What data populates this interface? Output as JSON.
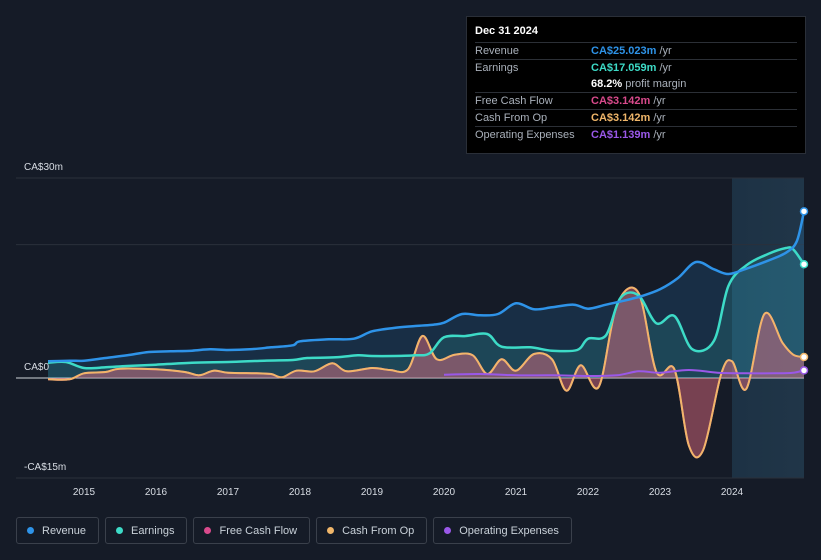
{
  "tooltip": {
    "date": "Dec 31 2024",
    "rows": [
      {
        "label": "Revenue",
        "value": "CA$25.023m",
        "unit": "/yr",
        "color": "#2e93e8"
      },
      {
        "label": "Earnings",
        "value": "CA$17.059m",
        "unit": "/yr",
        "color": "#3ddbc7"
      },
      {
        "label": "",
        "value": "68.2%",
        "unit": "profit margin",
        "color": "#ffffff"
      },
      {
        "label": "Free Cash Flow",
        "value": "CA$3.142m",
        "unit": "/yr",
        "color": "#d94a8c"
      },
      {
        "label": "Cash From Op",
        "value": "CA$3.142m",
        "unit": "/yr",
        "color": "#f0b66a"
      },
      {
        "label": "Operating Expenses",
        "value": "CA$1.139m",
        "unit": "/yr",
        "color": "#9a58e8"
      }
    ]
  },
  "legend": [
    {
      "label": "Revenue",
      "color": "#2e93e8"
    },
    {
      "label": "Earnings",
      "color": "#3ddbc7"
    },
    {
      "label": "Free Cash Flow",
      "color": "#d94a8c"
    },
    {
      "label": "Cash From Op",
      "color": "#f0b66a"
    },
    {
      "label": "Operating Expenses",
      "color": "#9a58e8"
    }
  ],
  "chart_data": {
    "type": "line",
    "title": "",
    "xlabel": "",
    "ylabel": "",
    "y_tick_labels": [
      "CA$30m",
      "CA$0",
      "-CA$15m"
    ],
    "y_ticks": [
      30,
      0,
      -15
    ],
    "ylim": [
      -15,
      30
    ],
    "xlim": [
      2014.5,
      2025.0
    ],
    "x_tick_labels": [
      "2015",
      "2016",
      "2017",
      "2018",
      "2019",
      "2020",
      "2021",
      "2022",
      "2023",
      "2024"
    ],
    "x_ticks": [
      2015,
      2016,
      2017,
      2018,
      2019,
      2020,
      2021,
      2022,
      2023,
      2024
    ],
    "forecast_start": 2024.0,
    "series": [
      {
        "name": "Revenue",
        "color": "#2e93e8",
        "points": [
          [
            2014.5,
            2.5
          ],
          [
            2014.8,
            2.6
          ],
          [
            2015.0,
            2.6
          ],
          [
            2015.3,
            3.0
          ],
          [
            2015.6,
            3.4
          ],
          [
            2015.9,
            3.9
          ],
          [
            2016.2,
            4.0
          ],
          [
            2016.5,
            4.1
          ],
          [
            2016.75,
            4.3
          ],
          [
            2017.0,
            4.2
          ],
          [
            2017.3,
            4.3
          ],
          [
            2017.6,
            4.6
          ],
          [
            2017.9,
            4.9
          ],
          [
            2018.0,
            5.5
          ],
          [
            2018.4,
            5.8
          ],
          [
            2018.75,
            5.9
          ],
          [
            2019.0,
            7.0
          ],
          [
            2019.3,
            7.5
          ],
          [
            2019.6,
            7.8
          ],
          [
            2019.85,
            8.0
          ],
          [
            2020.0,
            8.3
          ],
          [
            2020.25,
            9.6
          ],
          [
            2020.5,
            9.4
          ],
          [
            2020.75,
            9.6
          ],
          [
            2021.0,
            11.2
          ],
          [
            2021.25,
            10.3
          ],
          [
            2021.5,
            10.6
          ],
          [
            2021.8,
            11.0
          ],
          [
            2022.0,
            10.4
          ],
          [
            2022.25,
            11.0
          ],
          [
            2022.5,
            11.6
          ],
          [
            2022.75,
            12.3
          ],
          [
            2023.0,
            13.3
          ],
          [
            2023.25,
            15.0
          ],
          [
            2023.5,
            17.4
          ],
          [
            2023.75,
            16.3
          ],
          [
            2023.95,
            15.6
          ],
          [
            2024.2,
            16.4
          ],
          [
            2024.5,
            17.6
          ],
          [
            2024.75,
            18.8
          ],
          [
            2024.9,
            20.5
          ],
          [
            2025.0,
            25.0
          ]
        ]
      },
      {
        "name": "Earnings",
        "color": "#3ddbc7",
        "points": [
          [
            2014.5,
            2.3
          ],
          [
            2014.75,
            2.4
          ],
          [
            2015.0,
            1.5
          ],
          [
            2015.3,
            1.6
          ],
          [
            2015.6,
            1.8
          ],
          [
            2016.0,
            2.0
          ],
          [
            2016.5,
            2.3
          ],
          [
            2017.0,
            2.4
          ],
          [
            2017.5,
            2.6
          ],
          [
            2017.9,
            2.7
          ],
          [
            2018.1,
            3.0
          ],
          [
            2018.5,
            3.1
          ],
          [
            2018.8,
            3.4
          ],
          [
            2019.0,
            3.3
          ],
          [
            2019.3,
            3.3
          ],
          [
            2019.6,
            3.4
          ],
          [
            2019.8,
            3.7
          ],
          [
            2020.0,
            6.1
          ],
          [
            2020.3,
            6.3
          ],
          [
            2020.6,
            6.6
          ],
          [
            2020.8,
            4.7
          ],
          [
            2021.2,
            4.6
          ],
          [
            2021.5,
            4.1
          ],
          [
            2021.85,
            4.2
          ],
          [
            2022.0,
            5.9
          ],
          [
            2022.25,
            6.4
          ],
          [
            2022.45,
            12.0
          ],
          [
            2022.7,
            12.4
          ],
          [
            2022.95,
            8.2
          ],
          [
            2023.2,
            9.3
          ],
          [
            2023.45,
            4.3
          ],
          [
            2023.75,
            5.6
          ],
          [
            2023.95,
            13.8
          ],
          [
            2024.2,
            16.9
          ],
          [
            2024.5,
            18.6
          ],
          [
            2024.75,
            19.5
          ],
          [
            2024.85,
            19.3
          ],
          [
            2025.0,
            17.059
          ]
        ]
      },
      {
        "name": "Cash From Op",
        "color": "#f0b66a",
        "points": [
          [
            2014.5,
            -0.2
          ],
          [
            2014.8,
            -0.2
          ],
          [
            2015.0,
            0.7
          ],
          [
            2015.3,
            0.9
          ],
          [
            2015.5,
            1.4
          ],
          [
            2016.0,
            1.3
          ],
          [
            2016.4,
            0.9
          ],
          [
            2016.6,
            0.4
          ],
          [
            2016.8,
            1.1
          ],
          [
            2017.0,
            0.8
          ],
          [
            2017.4,
            0.7
          ],
          [
            2017.6,
            0.6
          ],
          [
            2017.75,
            0.1
          ],
          [
            2017.95,
            1.1
          ],
          [
            2018.2,
            1.0
          ],
          [
            2018.45,
            2.2
          ],
          [
            2018.65,
            1.0
          ],
          [
            2019.0,
            1.5
          ],
          [
            2019.25,
            1.2
          ],
          [
            2019.5,
            1.3
          ],
          [
            2019.7,
            6.3
          ],
          [
            2019.9,
            2.8
          ],
          [
            2020.15,
            3.5
          ],
          [
            2020.4,
            3.4
          ],
          [
            2020.6,
            0.6
          ],
          [
            2020.8,
            2.8
          ],
          [
            2021.0,
            1.1
          ],
          [
            2021.25,
            3.6
          ],
          [
            2021.5,
            2.8
          ],
          [
            2021.7,
            -1.9
          ],
          [
            2021.9,
            1.9
          ],
          [
            2022.15,
            -1.3
          ],
          [
            2022.4,
            10.9
          ],
          [
            2022.7,
            12.8
          ],
          [
            2022.95,
            0.9
          ],
          [
            2023.2,
            1.3
          ],
          [
            2023.4,
            -10.1
          ],
          [
            2023.6,
            -10.8
          ],
          [
            2023.85,
            0.6
          ],
          [
            2024.0,
            2.5
          ],
          [
            2024.2,
            -1.6
          ],
          [
            2024.45,
            9.6
          ],
          [
            2024.7,
            5.3
          ],
          [
            2024.85,
            3.5
          ],
          [
            2025.0,
            3.142
          ]
        ]
      },
      {
        "name": "Free Cash Flow",
        "color": "#d94a8c",
        "points": [
          [
            2014.5,
            -0.2
          ],
          [
            2014.8,
            -0.2
          ],
          [
            2015.0,
            0.7
          ],
          [
            2015.3,
            0.9
          ],
          [
            2015.5,
            1.4
          ],
          [
            2016.0,
            1.3
          ],
          [
            2016.4,
            0.9
          ],
          [
            2016.6,
            0.4
          ],
          [
            2016.8,
            1.1
          ],
          [
            2017.0,
            0.8
          ],
          [
            2017.4,
            0.7
          ],
          [
            2017.6,
            0.6
          ],
          [
            2017.75,
            0.1
          ],
          [
            2017.95,
            1.1
          ],
          [
            2018.2,
            1.0
          ],
          [
            2018.45,
            2.2
          ],
          [
            2018.65,
            1.0
          ],
          [
            2019.0,
            1.5
          ],
          [
            2019.25,
            1.2
          ],
          [
            2019.5,
            1.3
          ],
          [
            2019.7,
            6.3
          ],
          [
            2019.9,
            2.8
          ],
          [
            2020.15,
            3.5
          ],
          [
            2020.4,
            3.4
          ],
          [
            2020.6,
            0.6
          ],
          [
            2020.8,
            2.8
          ],
          [
            2021.0,
            1.1
          ],
          [
            2021.25,
            3.6
          ],
          [
            2021.5,
            2.8
          ],
          [
            2021.7,
            -1.9
          ],
          [
            2021.9,
            1.9
          ],
          [
            2022.15,
            -1.3
          ],
          [
            2022.4,
            10.9
          ],
          [
            2022.7,
            12.8
          ],
          [
            2022.95,
            0.9
          ],
          [
            2023.2,
            1.3
          ],
          [
            2023.4,
            -10.1
          ],
          [
            2023.6,
            -10.8
          ],
          [
            2023.85,
            0.6
          ],
          [
            2024.0,
            2.5
          ],
          [
            2024.2,
            -1.6
          ],
          [
            2024.45,
            9.6
          ],
          [
            2024.7,
            5.3
          ],
          [
            2024.85,
            3.5
          ],
          [
            2025.0,
            3.142
          ]
        ]
      },
      {
        "name": "Operating Expenses",
        "color": "#9a58e8",
        "points": [
          [
            2020.0,
            0.5
          ],
          [
            2020.5,
            0.6
          ],
          [
            2021.0,
            0.4
          ],
          [
            2021.5,
            0.4
          ],
          [
            2022.0,
            0.3
          ],
          [
            2022.4,
            0.4
          ],
          [
            2022.7,
            1.0
          ],
          [
            2023.0,
            0.8
          ],
          [
            2023.4,
            1.2
          ],
          [
            2023.8,
            0.8
          ],
          [
            2024.2,
            0.7
          ],
          [
            2024.6,
            0.7
          ],
          [
            2024.85,
            0.8
          ],
          [
            2025.0,
            1.139
          ]
        ]
      }
    ],
    "end_markers": [
      "Revenue",
      "Earnings",
      "Cash From Op",
      "Operating Expenses"
    ]
  }
}
